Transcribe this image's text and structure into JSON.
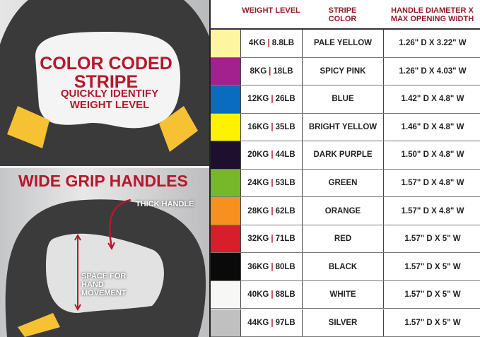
{
  "promo": {
    "top_title": "COLOR CODED STRIPE",
    "top_subtitle": "QUICKLY IDENTIFY WEIGHT LEVEL",
    "bottom_title": "WIDE GRIP HANDLES",
    "thick_handle_label": "THICK HANDLE",
    "space_label": "SPACE FOR HAND MOVEMENT"
  },
  "table": {
    "headers": [
      "WEIGHT LEVEL",
      "STRIPE COLOR",
      "HANDLE DIAMETER X MAX OPENING WIDTH"
    ],
    "rows": [
      {
        "color": "#fdf5a0",
        "kg": "4KG",
        "lb": "8.8LB",
        "stripe": "PALE YELLOW",
        "handle": "1.26\" D X 3.22\" W"
      },
      {
        "color": "#a3218f",
        "kg": "8KG",
        "lb": "18LB",
        "stripe": "SPICY PINK",
        "handle": "1.26\" D X 4.03\" W"
      },
      {
        "color": "#0a6cc0",
        "kg": "12KG",
        "lb": "26LB",
        "stripe": "BLUE",
        "handle": "1.42\" D X 4.8\" W"
      },
      {
        "color": "#fff200",
        "kg": "16KG",
        "lb": "35LB",
        "stripe": "BRIGHT YELLOW",
        "handle": "1.46\" D X 4.8\" W"
      },
      {
        "color": "#1f0f2e",
        "kg": "20KG",
        "lb": "44LB",
        "stripe": "DARK PURPLE",
        "handle": "1.50\" D X 4.8\" W"
      },
      {
        "color": "#76b82a",
        "kg": "24KG",
        "lb": "53LB",
        "stripe": "GREEN",
        "handle": "1.57\" D X 4.8\" W"
      },
      {
        "color": "#f7901e",
        "kg": "28KG",
        "lb": "62LB",
        "stripe": "ORANGE",
        "handle": "1.57\" D X 4.8\" W"
      },
      {
        "color": "#d71f2b",
        "kg": "32KG",
        "lb": "71LB",
        "stripe": "RED",
        "handle": "1.57\" D X 5\" W"
      },
      {
        "color": "#0a0a0a",
        "kg": "36KG",
        "lb": "80LB",
        "stripe": "BLACK",
        "handle": "1.57\" D X 5\" W"
      },
      {
        "color": "#f7f7f5",
        "kg": "40KG",
        "lb": "88LB",
        "stripe": "WHITE",
        "handle": "1.57\" D X 5\" W"
      },
      {
        "color": "#c0c0c0",
        "kg": "44KG",
        "lb": "97LB",
        "stripe": "SILVER",
        "handle": "1.57\" D X 5\" W"
      }
    ]
  }
}
